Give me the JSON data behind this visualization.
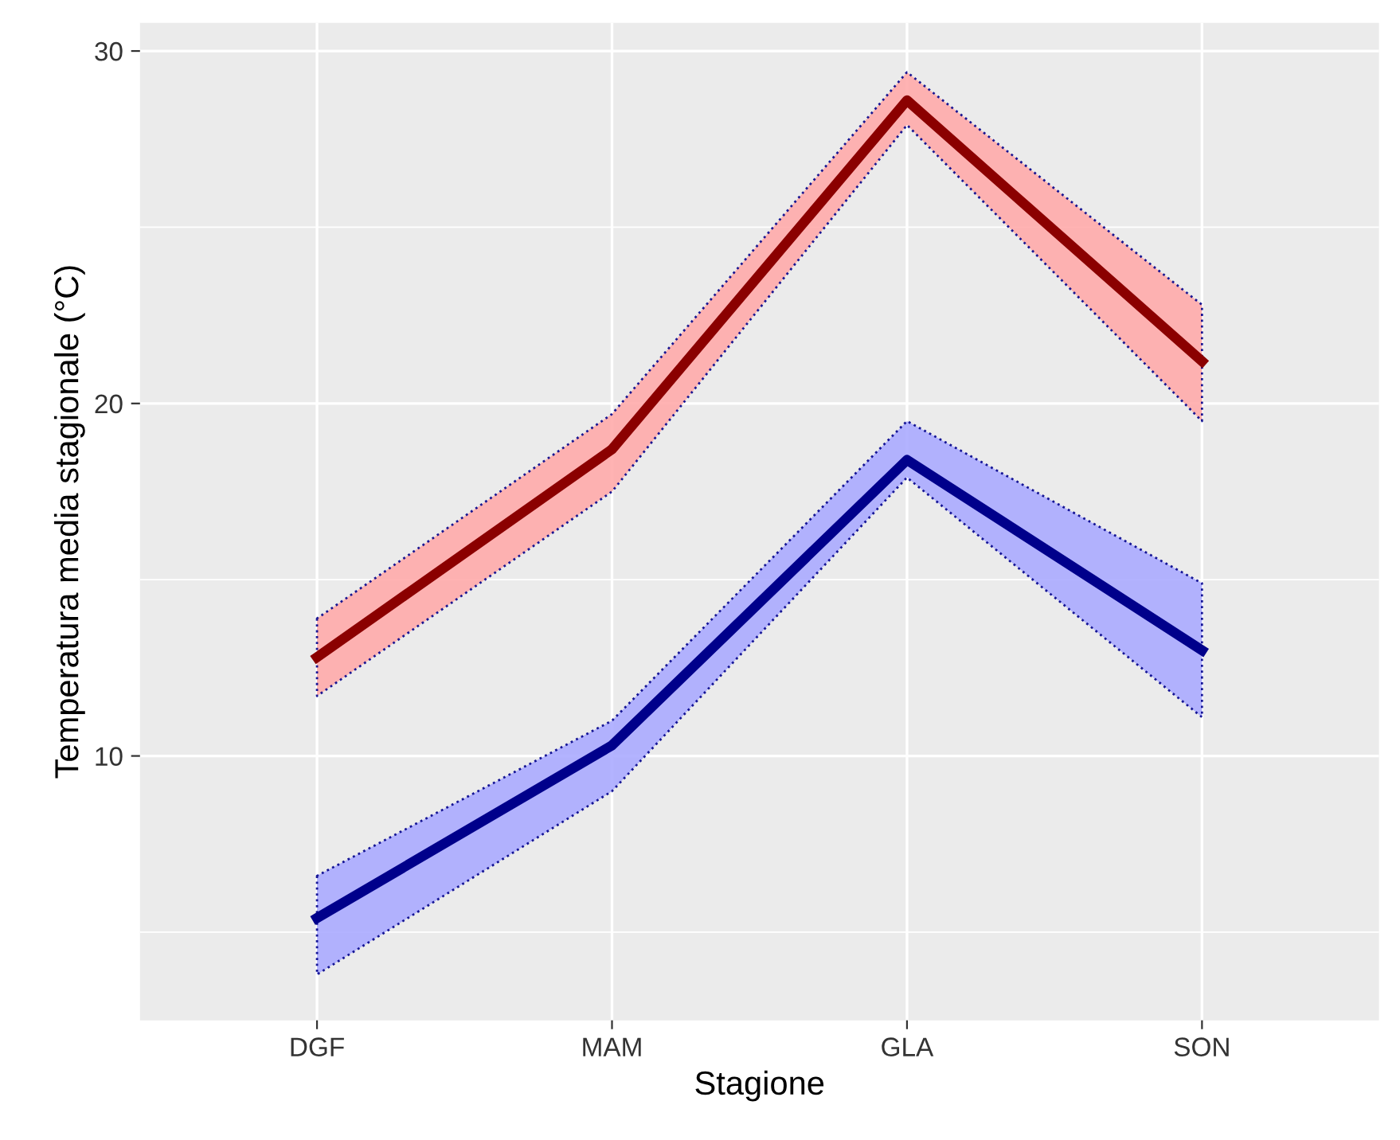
{
  "chart_data": {
    "type": "line",
    "xlabel": "Stagione",
    "ylabel": "Temperatura media stagionale (°C)",
    "categories": [
      "DGF",
      "MAM",
      "GLA",
      "SON"
    ],
    "series": [
      {
        "color": "#8b0000",
        "values": [
          12.8,
          18.7,
          28.6,
          21.2
        ],
        "lower": [
          11.7,
          17.5,
          27.9,
          19.5
        ],
        "upper": [
          13.9,
          19.7,
          29.4,
          22.8
        ]
      },
      {
        "color": "#00008b",
        "values": [
          5.4,
          10.3,
          18.4,
          13.0
        ],
        "lower": [
          3.8,
          9.0,
          17.9,
          11.1
        ],
        "upper": [
          6.6,
          11.0,
          19.5,
          14.9
        ]
      }
    ],
    "ylim": [
      2.5,
      30.8
    ],
    "yticks": [
      10,
      20,
      30
    ],
    "grid": true,
    "line_style": "solid",
    "marker": "none"
  }
}
